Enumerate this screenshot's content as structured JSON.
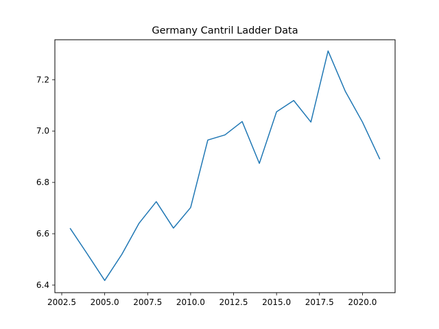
{
  "chart_data": {
    "type": "line",
    "title": "Germany Cantril Ladder Data",
    "xlabel": "",
    "ylabel": "",
    "xlim": [
      2002.1,
      2021.9
    ],
    "ylim": [
      6.3705,
      7.3555
    ],
    "x_ticks": [
      2002.5,
      2005.0,
      2007.5,
      2010.0,
      2012.5,
      2015.0,
      2017.5,
      2020.0
    ],
    "x_tick_labels": [
      "2002.5",
      "2005.0",
      "2007.5",
      "2010.0",
      "2012.5",
      "2015.0",
      "2017.5",
      "2020.0"
    ],
    "y_ticks": [
      6.4,
      6.6,
      6.8,
      7.0,
      7.2
    ],
    "y_tick_labels": [
      "6.4",
      "6.6",
      "6.8",
      "7.0",
      "7.2"
    ],
    "grid": false,
    "color": "#1f77b4",
    "series": [
      {
        "x": [
          2003,
          2004,
          2005,
          2006,
          2007,
          2008,
          2009,
          2010,
          2011,
          2012,
          2013,
          2014,
          2015,
          2016,
          2017,
          2018,
          2019,
          2020,
          2021
        ],
        "y": [
          6.62,
          6.52,
          6.418,
          6.52,
          6.641,
          6.725,
          6.622,
          6.702,
          6.965,
          6.985,
          7.037,
          6.874,
          7.075,
          7.119,
          7.035,
          7.312,
          7.155,
          7.035,
          6.892
        ]
      }
    ]
  }
}
